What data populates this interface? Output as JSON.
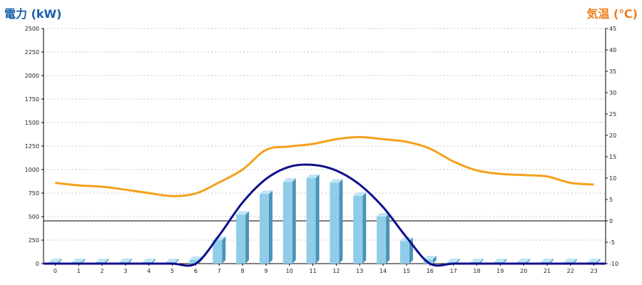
{
  "chart_data": {
    "type": "bar",
    "categories": [
      "0",
      "1",
      "2",
      "3",
      "4",
      "5",
      "6",
      "7",
      "8",
      "9",
      "10",
      "11",
      "12",
      "13",
      "14",
      "15",
      "16",
      "17",
      "18",
      "19",
      "20",
      "21",
      "22",
      "23"
    ],
    "left_axis": {
      "label": "電力 (kW)",
      "ylim": [
        0,
        2500
      ],
      "ticks": [
        "0",
        "250",
        "500",
        "750",
        "1000",
        "1250",
        "1500",
        "1750",
        "2000",
        "2250",
        "2500"
      ]
    },
    "right_axis": {
      "label": "気温 (℃)",
      "ylim": [
        -10,
        45
      ],
      "ticks": [
        "-10",
        "-5",
        "0",
        "5",
        "10",
        "15",
        "20",
        "25",
        "30",
        "35",
        "40",
        "45"
      ]
    },
    "series": [
      {
        "type": "bar",
        "axis": "left",
        "values": [
          15,
          15,
          15,
          15,
          15,
          15,
          40,
          250,
          520,
          740,
          870,
          910,
          860,
          720,
          500,
          240,
          45,
          15,
          15,
          15,
          15,
          15,
          15,
          15
        ]
      },
      {
        "type": "line",
        "axis": "left",
        "values": [
          0,
          0,
          0,
          0,
          0,
          0,
          0,
          300,
          650,
          900,
          1030,
          1050,
          990,
          840,
          600,
          280,
          0,
          0,
          0,
          0,
          0,
          0,
          0,
          0
        ]
      },
      {
        "type": "line",
        "axis": "right",
        "values": [
          8.9,
          8.3,
          8.0,
          7.3,
          6.5,
          5.8,
          6.4,
          9.0,
          12.0,
          16.6,
          17.4,
          18.0,
          19.1,
          19.6,
          19.1,
          18.5,
          16.9,
          13.9,
          11.8,
          11.0,
          10.7,
          10.4,
          8.9,
          8.5
        ]
      }
    ],
    "colors": {
      "bar_face": "#8fcde8",
      "bar_side": "#4a93b8",
      "bar_top": "#bfe4f4",
      "power_line": "#0f0f8c",
      "temp_line": "#f5a11b",
      "left_title": "#1a5fa8",
      "right_title": "#ee7d1e"
    },
    "grid": true
  }
}
